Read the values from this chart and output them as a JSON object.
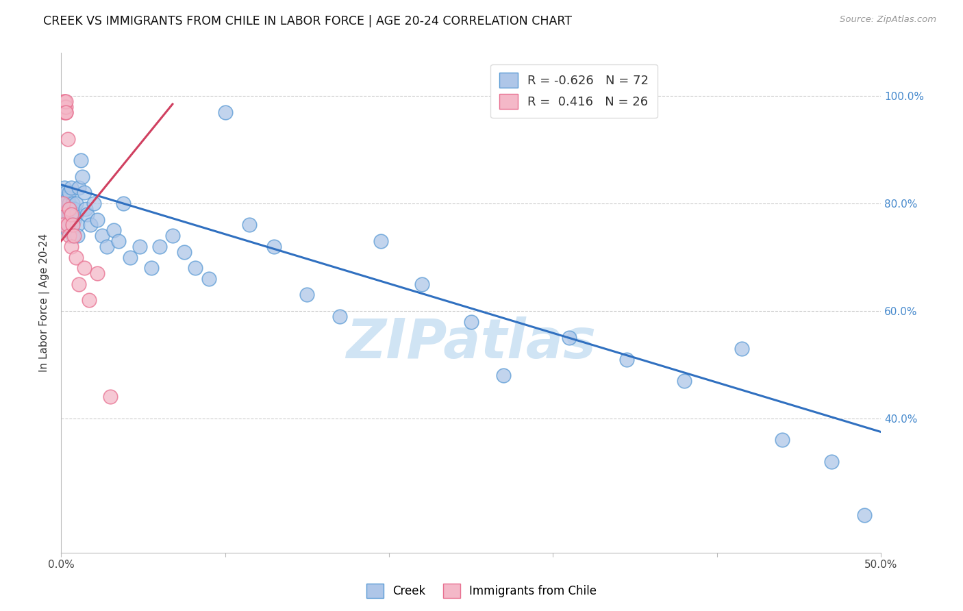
{
  "title": "CREEK VS IMMIGRANTS FROM CHILE IN LABOR FORCE | AGE 20-24 CORRELATION CHART",
  "source": "Source: ZipAtlas.com",
  "ylabel": "In Labor Force | Age 20-24",
  "xmin": 0.0,
  "xmax": 0.5,
  "ymin": 0.15,
  "ymax": 1.08,
  "y_ticks": [
    0.4,
    0.6,
    0.8,
    1.0
  ],
  "y_tick_labels": [
    "40.0%",
    "60.0%",
    "80.0%",
    "100.0%"
  ],
  "legend_R_blue": "-0.626",
  "legend_N_blue": "72",
  "legend_R_pink": "0.416",
  "legend_N_pink": "26",
  "blue_scatter_color": "#aec6e8",
  "blue_edge_color": "#5b9bd5",
  "pink_scatter_color": "#f4b8c8",
  "pink_edge_color": "#e87090",
  "blue_line_color": "#3070c0",
  "pink_line_color": "#d04060",
  "watermark": "ZIPatlas",
  "watermark_color": "#d0e4f4",
  "blue_line_x0": 0.0,
  "blue_line_x1": 0.5,
  "blue_line_y0": 0.835,
  "blue_line_y1": 0.375,
  "pink_line_x0": 0.0,
  "pink_line_x1": 0.068,
  "pink_line_y0": 0.73,
  "pink_line_y1": 0.985,
  "blue_x": [
    0.001,
    0.001,
    0.001,
    0.002,
    0.002,
    0.002,
    0.002,
    0.002,
    0.003,
    0.003,
    0.003,
    0.003,
    0.003,
    0.004,
    0.004,
    0.004,
    0.004,
    0.005,
    0.005,
    0.005,
    0.005,
    0.006,
    0.006,
    0.006,
    0.006,
    0.007,
    0.007,
    0.007,
    0.008,
    0.008,
    0.009,
    0.009,
    0.01,
    0.01,
    0.011,
    0.012,
    0.013,
    0.014,
    0.015,
    0.016,
    0.018,
    0.02,
    0.022,
    0.025,
    0.028,
    0.032,
    0.035,
    0.038,
    0.042,
    0.048,
    0.055,
    0.06,
    0.068,
    0.075,
    0.082,
    0.09,
    0.1,
    0.115,
    0.13,
    0.15,
    0.17,
    0.195,
    0.22,
    0.25,
    0.27,
    0.31,
    0.345,
    0.38,
    0.415,
    0.44,
    0.47,
    0.49
  ],
  "blue_y": [
    0.81,
    0.79,
    0.82,
    0.8,
    0.78,
    0.83,
    0.77,
    0.79,
    0.81,
    0.78,
    0.8,
    0.76,
    0.82,
    0.79,
    0.77,
    0.81,
    0.75,
    0.8,
    0.78,
    0.76,
    0.82,
    0.79,
    0.77,
    0.83,
    0.75,
    0.8,
    0.78,
    0.74,
    0.79,
    0.77,
    0.78,
    0.8,
    0.76,
    0.74,
    0.83,
    0.88,
    0.85,
    0.82,
    0.79,
    0.78,
    0.76,
    0.8,
    0.77,
    0.74,
    0.72,
    0.75,
    0.73,
    0.8,
    0.7,
    0.72,
    0.68,
    0.72,
    0.74,
    0.71,
    0.68,
    0.66,
    0.97,
    0.76,
    0.72,
    0.63,
    0.59,
    0.73,
    0.65,
    0.58,
    0.48,
    0.55,
    0.51,
    0.47,
    0.53,
    0.36,
    0.32,
    0.22
  ],
  "pink_x": [
    0.001,
    0.001,
    0.001,
    0.002,
    0.002,
    0.002,
    0.002,
    0.002,
    0.003,
    0.003,
    0.003,
    0.003,
    0.004,
    0.004,
    0.005,
    0.005,
    0.006,
    0.006,
    0.007,
    0.008,
    0.009,
    0.011,
    0.014,
    0.017,
    0.022,
    0.03
  ],
  "pink_y": [
    0.78,
    0.8,
    0.76,
    0.98,
    0.99,
    0.97,
    0.98,
    0.99,
    0.97,
    0.98,
    0.99,
    0.97,
    0.92,
    0.76,
    0.74,
    0.79,
    0.72,
    0.78,
    0.76,
    0.74,
    0.7,
    0.65,
    0.68,
    0.62,
    0.67,
    0.44
  ]
}
